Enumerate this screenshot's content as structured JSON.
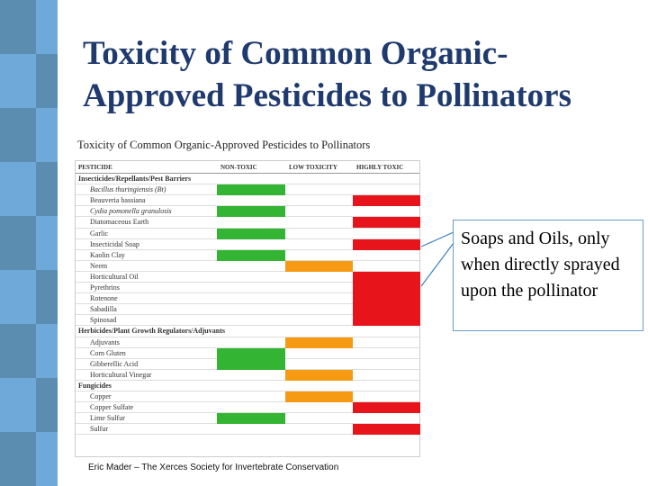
{
  "title": [
    "Toxicity of Common Organic-",
    "Approved Pesticides to Pollinators"
  ],
  "table": {
    "caption": "Toxicity of Common Organic-Approved Pesticides to Pollinators",
    "columns": [
      {
        "label": "PESTICIDE"
      },
      {
        "label": "NON-TOXIC",
        "color": "#33b533"
      },
      {
        "label": "LOW TOXICITY",
        "color": "#f59a12"
      },
      {
        "label": "HIGHLY TOXIC",
        "color": "#e8141c"
      }
    ],
    "rows": [
      {
        "section": "Insecticides/Repellants/Pest Barriers"
      },
      {
        "name": "Bacillus thuringiensis (Bt)",
        "rating": "NON-TOXIC"
      },
      {
        "name": "Beauveria bassiana",
        "rating": "HIGHLY TOXIC"
      },
      {
        "name": "Cydia pomonella granulosis",
        "rating": "NON-TOXIC"
      },
      {
        "name": "Diatomaceous Earth",
        "rating": "HIGHLY TOXIC"
      },
      {
        "name": "Garlic",
        "rating": "NON-TOXIC"
      },
      {
        "name": "Insecticidal Soap",
        "rating": "HIGHLY TOXIC"
      },
      {
        "name": "Kaolin Clay",
        "rating": "NON-TOXIC"
      },
      {
        "name": "Neem",
        "rating": "LOW TOXICITY"
      },
      {
        "name": "Horticultural Oil",
        "rating": "HIGHLY TOXIC"
      },
      {
        "name": "Pyrethrins",
        "rating": "HIGHLY TOXIC"
      },
      {
        "name": "Rotenone",
        "rating": "HIGHLY TOXIC"
      },
      {
        "name": "Sabadilla",
        "rating": "HIGHLY TOXIC"
      },
      {
        "name": "Spinosad",
        "rating": "HIGHLY TOXIC"
      },
      {
        "section": "Herbicides/Plant Growth Regulators/Adjuvants"
      },
      {
        "name": "Adjuvants",
        "rating": "LOW TOXICITY"
      },
      {
        "name": "Corn Gluten",
        "rating": "NON-TOXIC"
      },
      {
        "name": "Gibberellic Acid",
        "rating": "NON-TOXIC"
      },
      {
        "name": "Horticultural Vinegar",
        "rating": "LOW TOXICITY"
      },
      {
        "section": "Fungicides"
      },
      {
        "name": "Copper",
        "rating": "LOW TOXICITY"
      },
      {
        "name": "Copper Sulfate",
        "rating": "HIGHLY TOXIC"
      },
      {
        "name": "Lime Sulfur",
        "rating": "NON-TOXIC"
      },
      {
        "name": "Sulfur",
        "rating": "HIGHLY TOXIC"
      }
    ]
  },
  "callout": "Soaps and Oils, only when directly sprayed upon the pollinator",
  "credit": "Eric Mader – The Xerces Society for Invertebrate Conservation"
}
